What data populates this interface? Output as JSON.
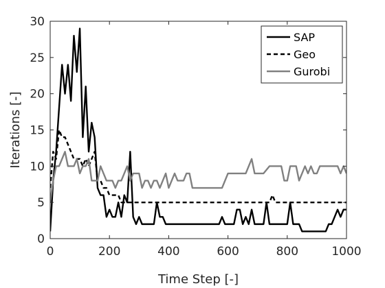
{
  "chart_data": {
    "type": "line",
    "title": "",
    "xlabel": "Time Step [-]",
    "ylabel": "Iterations [-]",
    "xlim": [
      0,
      1000
    ],
    "ylim": [
      0,
      30
    ],
    "xticks": [
      0,
      200,
      400,
      600,
      800,
      1000
    ],
    "yticks": [
      0,
      5,
      10,
      15,
      20,
      25,
      30
    ],
    "grid": false,
    "legend_position": "top-right",
    "series": [
      {
        "name": "SAP",
        "color": "#000000",
        "dash": "solid",
        "points": [
          [
            0,
            1
          ],
          [
            10,
            8
          ],
          [
            20,
            12
          ],
          [
            30,
            18
          ],
          [
            40,
            24
          ],
          [
            50,
            20
          ],
          [
            60,
            24
          ],
          [
            70,
            19
          ],
          [
            80,
            28
          ],
          [
            90,
            23
          ],
          [
            100,
            29
          ],
          [
            110,
            14
          ],
          [
            120,
            21
          ],
          [
            130,
            12
          ],
          [
            140,
            16
          ],
          [
            150,
            14
          ],
          [
            160,
            7
          ],
          [
            170,
            6
          ],
          [
            180,
            6
          ],
          [
            190,
            3
          ],
          [
            200,
            4
          ],
          [
            210,
            3
          ],
          [
            220,
            3
          ],
          [
            230,
            5
          ],
          [
            240,
            3
          ],
          [
            250,
            6
          ],
          [
            260,
            5
          ],
          [
            270,
            12
          ],
          [
            280,
            3
          ],
          [
            290,
            2
          ],
          [
            300,
            3
          ],
          [
            310,
            2
          ],
          [
            320,
            2
          ],
          [
            330,
            2
          ],
          [
            340,
            2
          ],
          [
            350,
            2
          ],
          [
            360,
            5
          ],
          [
            370,
            3
          ],
          [
            380,
            3
          ],
          [
            390,
            2
          ],
          [
            400,
            2
          ],
          [
            420,
            2
          ],
          [
            440,
            2
          ],
          [
            460,
            2
          ],
          [
            480,
            2
          ],
          [
            500,
            2
          ],
          [
            520,
            2
          ],
          [
            540,
            2
          ],
          [
            560,
            2
          ],
          [
            570,
            2
          ],
          [
            580,
            3
          ],
          [
            590,
            2
          ],
          [
            600,
            2
          ],
          [
            620,
            2
          ],
          [
            630,
            4
          ],
          [
            640,
            4
          ],
          [
            650,
            2
          ],
          [
            660,
            3
          ],
          [
            670,
            2
          ],
          [
            680,
            4
          ],
          [
            690,
            2
          ],
          [
            700,
            2
          ],
          [
            720,
            2
          ],
          [
            730,
            5
          ],
          [
            740,
            2
          ],
          [
            760,
            2
          ],
          [
            780,
            2
          ],
          [
            800,
            2
          ],
          [
            810,
            5
          ],
          [
            820,
            2
          ],
          [
            840,
            2
          ],
          [
            850,
            1
          ],
          [
            870,
            1
          ],
          [
            890,
            1
          ],
          [
            910,
            1
          ],
          [
            930,
            1
          ],
          [
            940,
            2
          ],
          [
            950,
            2
          ],
          [
            960,
            3
          ],
          [
            970,
            4
          ],
          [
            980,
            3
          ],
          [
            990,
            4
          ],
          [
            1000,
            4
          ]
        ]
      },
      {
        "name": "Geo",
        "color": "#000000",
        "dash": "dashed",
        "points": [
          [
            0,
            7
          ],
          [
            10,
            12
          ],
          [
            20,
            11
          ],
          [
            30,
            15
          ],
          [
            40,
            14
          ],
          [
            50,
            14
          ],
          [
            60,
            13
          ],
          [
            70,
            12
          ],
          [
            80,
            11
          ],
          [
            90,
            11
          ],
          [
            100,
            11
          ],
          [
            110,
            10
          ],
          [
            120,
            11
          ],
          [
            130,
            10
          ],
          [
            140,
            11
          ],
          [
            150,
            12
          ],
          [
            160,
            8
          ],
          [
            170,
            8
          ],
          [
            180,
            7
          ],
          [
            190,
            7
          ],
          [
            200,
            6
          ],
          [
            210,
            6
          ],
          [
            220,
            6
          ],
          [
            230,
            6
          ],
          [
            240,
            5
          ],
          [
            250,
            5
          ],
          [
            260,
            5
          ],
          [
            270,
            5
          ],
          [
            280,
            5
          ],
          [
            300,
            5
          ],
          [
            400,
            5
          ],
          [
            500,
            5
          ],
          [
            600,
            5
          ],
          [
            700,
            5
          ],
          [
            740,
            5
          ],
          [
            750,
            6
          ],
          [
            760,
            5
          ],
          [
            800,
            5
          ],
          [
            900,
            5
          ],
          [
            1000,
            5
          ]
        ]
      },
      {
        "name": "Gurobi",
        "color": "#808080",
        "dash": "solid",
        "points": [
          [
            0,
            5
          ],
          [
            10,
            8
          ],
          [
            20,
            10
          ],
          [
            30,
            10
          ],
          [
            40,
            11
          ],
          [
            50,
            12
          ],
          [
            60,
            10
          ],
          [
            70,
            10
          ],
          [
            80,
            10
          ],
          [
            90,
            11
          ],
          [
            100,
            9
          ],
          [
            110,
            10
          ],
          [
            120,
            10
          ],
          [
            130,
            11
          ],
          [
            140,
            8
          ],
          [
            150,
            8
          ],
          [
            160,
            8
          ],
          [
            170,
            10
          ],
          [
            180,
            9
          ],
          [
            190,
            8
          ],
          [
            200,
            8
          ],
          [
            210,
            8
          ],
          [
            220,
            7
          ],
          [
            230,
            8
          ],
          [
            240,
            8
          ],
          [
            250,
            9
          ],
          [
            260,
            10
          ],
          [
            270,
            8
          ],
          [
            280,
            9
          ],
          [
            290,
            9
          ],
          [
            300,
            9
          ],
          [
            310,
            7
          ],
          [
            320,
            8
          ],
          [
            330,
            8
          ],
          [
            340,
            7
          ],
          [
            350,
            8
          ],
          [
            360,
            8
          ],
          [
            370,
            7
          ],
          [
            380,
            8
          ],
          [
            390,
            9
          ],
          [
            400,
            7
          ],
          [
            410,
            8
          ],
          [
            420,
            9
          ],
          [
            430,
            8
          ],
          [
            440,
            8
          ],
          [
            450,
            8
          ],
          [
            460,
            9
          ],
          [
            470,
            9
          ],
          [
            480,
            7
          ],
          [
            500,
            7
          ],
          [
            520,
            7
          ],
          [
            540,
            7
          ],
          [
            560,
            7
          ],
          [
            580,
            7
          ],
          [
            600,
            9
          ],
          [
            620,
            9
          ],
          [
            640,
            9
          ],
          [
            660,
            9
          ],
          [
            680,
            11
          ],
          [
            690,
            9
          ],
          [
            700,
            9
          ],
          [
            720,
            9
          ],
          [
            740,
            10
          ],
          [
            760,
            10
          ],
          [
            780,
            10
          ],
          [
            790,
            8
          ],
          [
            800,
            8
          ],
          [
            810,
            10
          ],
          [
            830,
            10
          ],
          [
            840,
            8
          ],
          [
            850,
            9
          ],
          [
            860,
            10
          ],
          [
            870,
            9
          ],
          [
            880,
            10
          ],
          [
            890,
            9
          ],
          [
            900,
            9
          ],
          [
            910,
            10
          ],
          [
            930,
            10
          ],
          [
            950,
            10
          ],
          [
            960,
            10
          ],
          [
            970,
            10
          ],
          [
            980,
            9
          ],
          [
            990,
            10
          ],
          [
            1000,
            9
          ]
        ]
      }
    ]
  }
}
